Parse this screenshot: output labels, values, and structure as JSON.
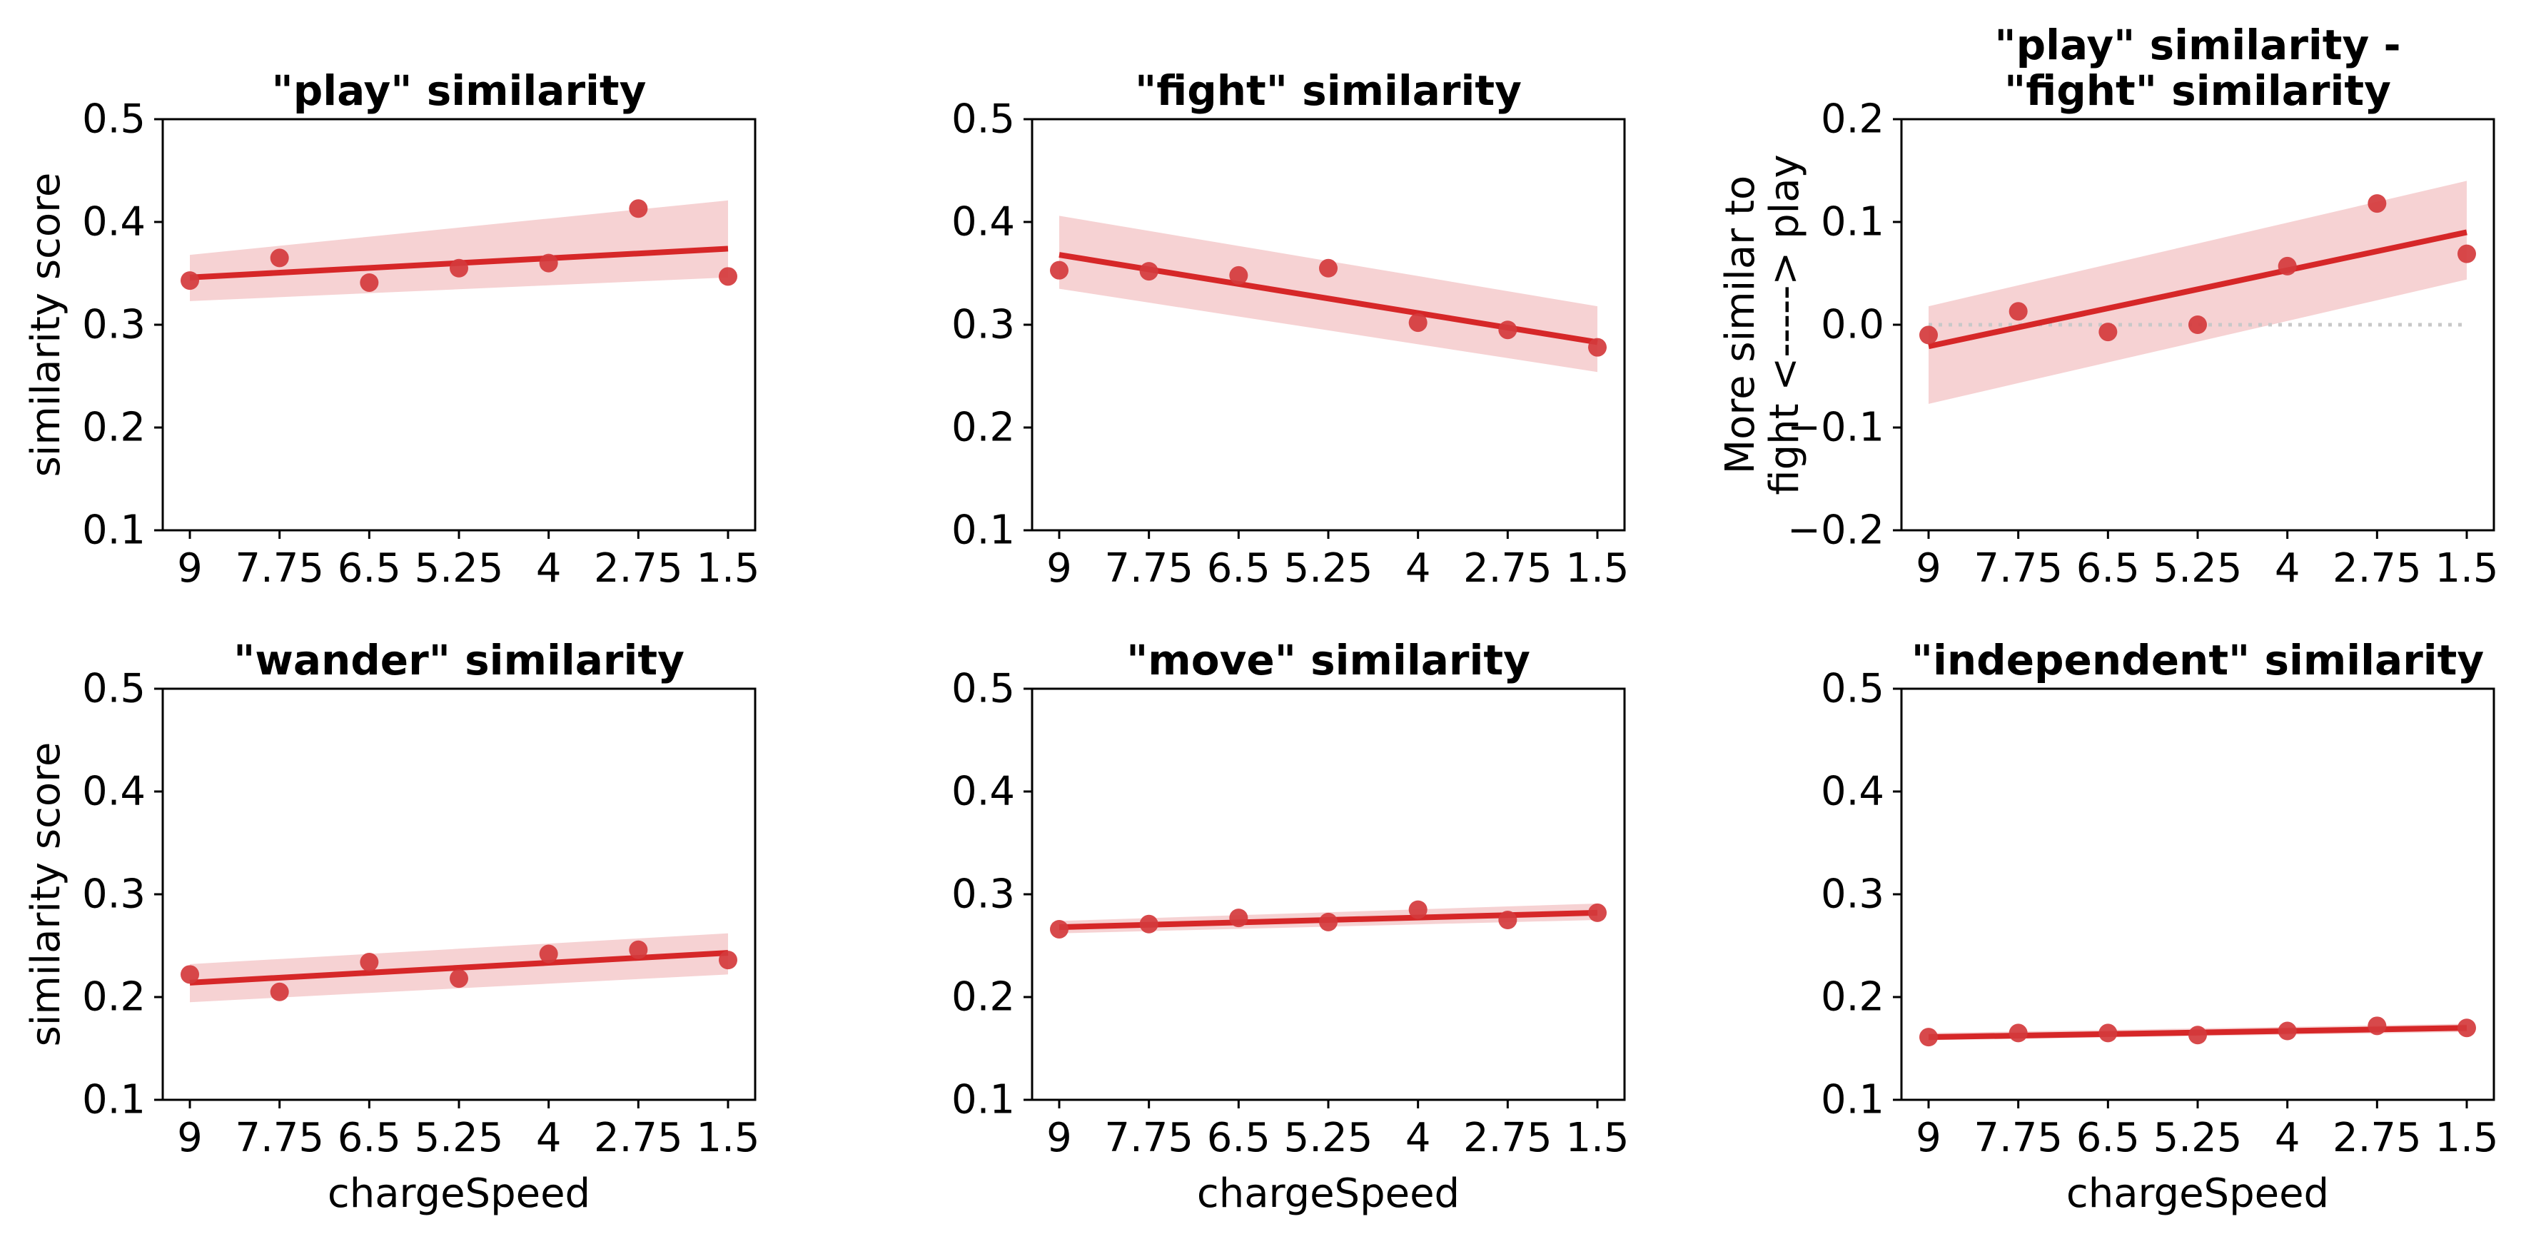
{
  "chart_data": [
    {
      "type": "scatter",
      "title": "\"play\" similarity",
      "xlabel": "",
      "ylabel": "similarity score",
      "x_categories": [
        "9",
        "7.75",
        "6.5",
        "5.25",
        "4",
        "2.75",
        "1.5"
      ],
      "ylim": [
        0.1,
        0.5
      ],
      "yticks": [
        "0.1",
        "0.2",
        "0.3",
        "0.4",
        "0.5"
      ],
      "points": [
        0.343,
        0.365,
        0.341,
        0.355,
        0.36,
        0.413,
        0.347
      ],
      "fit": [
        0.346,
        0.374
      ],
      "ci_low": [
        0.323,
        0.346
      ],
      "ci_high": [
        0.368,
        0.421
      ],
      "zero_line": false
    },
    {
      "type": "scatter",
      "title": "\"fight\" similarity",
      "xlabel": "",
      "ylabel": "",
      "x_categories": [
        "9",
        "7.75",
        "6.5",
        "5.25",
        "4",
        "2.75",
        "1.5"
      ],
      "ylim": [
        0.1,
        0.5
      ],
      "yticks": [
        "0.1",
        "0.2",
        "0.3",
        "0.4",
        "0.5"
      ],
      "points": [
        0.353,
        0.352,
        0.348,
        0.355,
        0.302,
        0.295,
        0.278
      ],
      "fit": [
        0.368,
        0.283
      ],
      "ci_low": [
        0.335,
        0.254
      ],
      "ci_high": [
        0.406,
        0.318
      ],
      "zero_line": false
    },
    {
      "type": "scatter",
      "title": "\"play\" similarity -\n\"fight\" similarity",
      "xlabel": "",
      "ylabel": "More similar to\nfight <-----> play",
      "x_categories": [
        "9",
        "7.75",
        "6.5",
        "5.25",
        "4",
        "2.75",
        "1.5"
      ],
      "ylim": [
        -0.2,
        0.2
      ],
      "yticks": [
        "−0.2",
        "−0.1",
        "0.0",
        "0.1",
        "0.2"
      ],
      "points": [
        -0.01,
        0.013,
        -0.007,
        0.0,
        0.057,
        0.118,
        0.069
      ],
      "fit": [
        -0.021,
        0.09
      ],
      "ci_low": [
        -0.077,
        0.044
      ],
      "ci_high": [
        0.018,
        0.14
      ],
      "zero_line": true
    },
    {
      "type": "scatter",
      "title": "\"wander\" similarity",
      "xlabel": "chargeSpeed",
      "ylabel": "similarity score",
      "x_categories": [
        "9",
        "7.75",
        "6.5",
        "5.25",
        "4",
        "2.75",
        "1.5"
      ],
      "ylim": [
        0.1,
        0.5
      ],
      "yticks": [
        "0.1",
        "0.2",
        "0.3",
        "0.4",
        "0.5"
      ],
      "points": [
        0.222,
        0.205,
        0.234,
        0.218,
        0.242,
        0.246,
        0.236
      ],
      "fit": [
        0.214,
        0.243
      ],
      "ci_low": [
        0.195,
        0.222
      ],
      "ci_high": [
        0.232,
        0.262
      ],
      "zero_line": false
    },
    {
      "type": "scatter",
      "title": "\"move\" similarity",
      "xlabel": "chargeSpeed",
      "ylabel": "",
      "x_categories": [
        "9",
        "7.75",
        "6.5",
        "5.25",
        "4",
        "2.75",
        "1.5"
      ],
      "ylim": [
        0.1,
        0.5
      ],
      "yticks": [
        "0.1",
        "0.2",
        "0.3",
        "0.4",
        "0.5"
      ],
      "points": [
        0.266,
        0.271,
        0.277,
        0.273,
        0.285,
        0.275,
        0.282
      ],
      "fit": [
        0.268,
        0.282
      ],
      "ci_low": [
        0.262,
        0.275
      ],
      "ci_high": [
        0.274,
        0.291
      ],
      "zero_line": false
    },
    {
      "type": "scatter",
      "title": "\"independent\" similarity",
      "xlabel": "chargeSpeed",
      "ylabel": "",
      "x_categories": [
        "9",
        "7.75",
        "6.5",
        "5.25",
        "4",
        "2.75",
        "1.5"
      ],
      "ylim": [
        0.1,
        0.5
      ],
      "yticks": [
        "0.1",
        "0.2",
        "0.3",
        "0.4",
        "0.5"
      ],
      "points": [
        0.161,
        0.165,
        0.165,
        0.163,
        0.167,
        0.172,
        0.17
      ],
      "fit": [
        0.161,
        0.17
      ],
      "ci_low": [
        0.158,
        0.166
      ],
      "ci_high": [
        0.165,
        0.174
      ],
      "zero_line": false
    }
  ],
  "colors": {
    "point": "#d43a3c",
    "fit_line": "#d62728",
    "ci_band": "#f4c7c8",
    "zero_line": "#c8c8c8",
    "axes": "#000000"
  }
}
